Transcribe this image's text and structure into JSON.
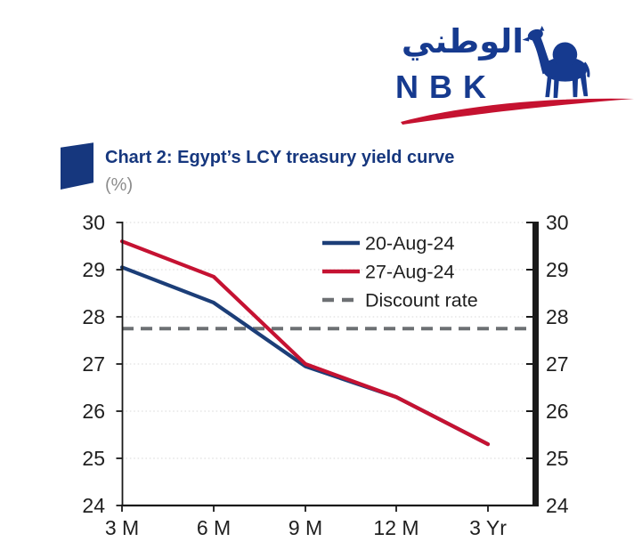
{
  "logo": {
    "arabic": "الوطني",
    "latin": "NBK",
    "blue": "#163a8f",
    "swoosh_red": "#c51230"
  },
  "header": {
    "title": "Chart 2: Egypt’s LCY treasury yield curve",
    "subtitle": "(%)",
    "title_color": "#16377e",
    "subtitle_color": "#8c8c8c"
  },
  "chart_data": {
    "type": "line",
    "title": "Chart 2: Egypt’s LCY treasury yield curve",
    "unit": "(%)",
    "categories": [
      "3 M",
      "6 M",
      "9 M",
      "12 M",
      "3 Yr"
    ],
    "series": [
      {
        "name": "20-Aug-24",
        "color": "#1c3e78",
        "values": [
          29.05,
          28.3,
          26.95,
          26.3,
          25.3
        ]
      },
      {
        "name": "27-Aug-24",
        "color": "#c51232",
        "values": [
          29.6,
          28.85,
          27.0,
          26.3,
          25.3
        ]
      }
    ],
    "reference_line": {
      "name": "Discount rate",
      "value": 27.75,
      "color": "#6d7073",
      "style": "dashed"
    },
    "ylim": [
      24,
      30
    ],
    "y_ticks": [
      "24",
      "25",
      "26",
      "27",
      "28",
      "29",
      "30"
    ],
    "x_axis_labels": [
      "3 M",
      "6 M",
      "9 M",
      "12 M",
      "3 Yr"
    ],
    "dual_y_axis": true,
    "grid": "dotted-horizontal",
    "grid_color": "#d9d9d9",
    "axis_color": "#1a1a1a",
    "legend_position": "top-right-inside",
    "legend": [
      "20-Aug-24",
      "27-Aug-24",
      "Discount rate"
    ]
  }
}
